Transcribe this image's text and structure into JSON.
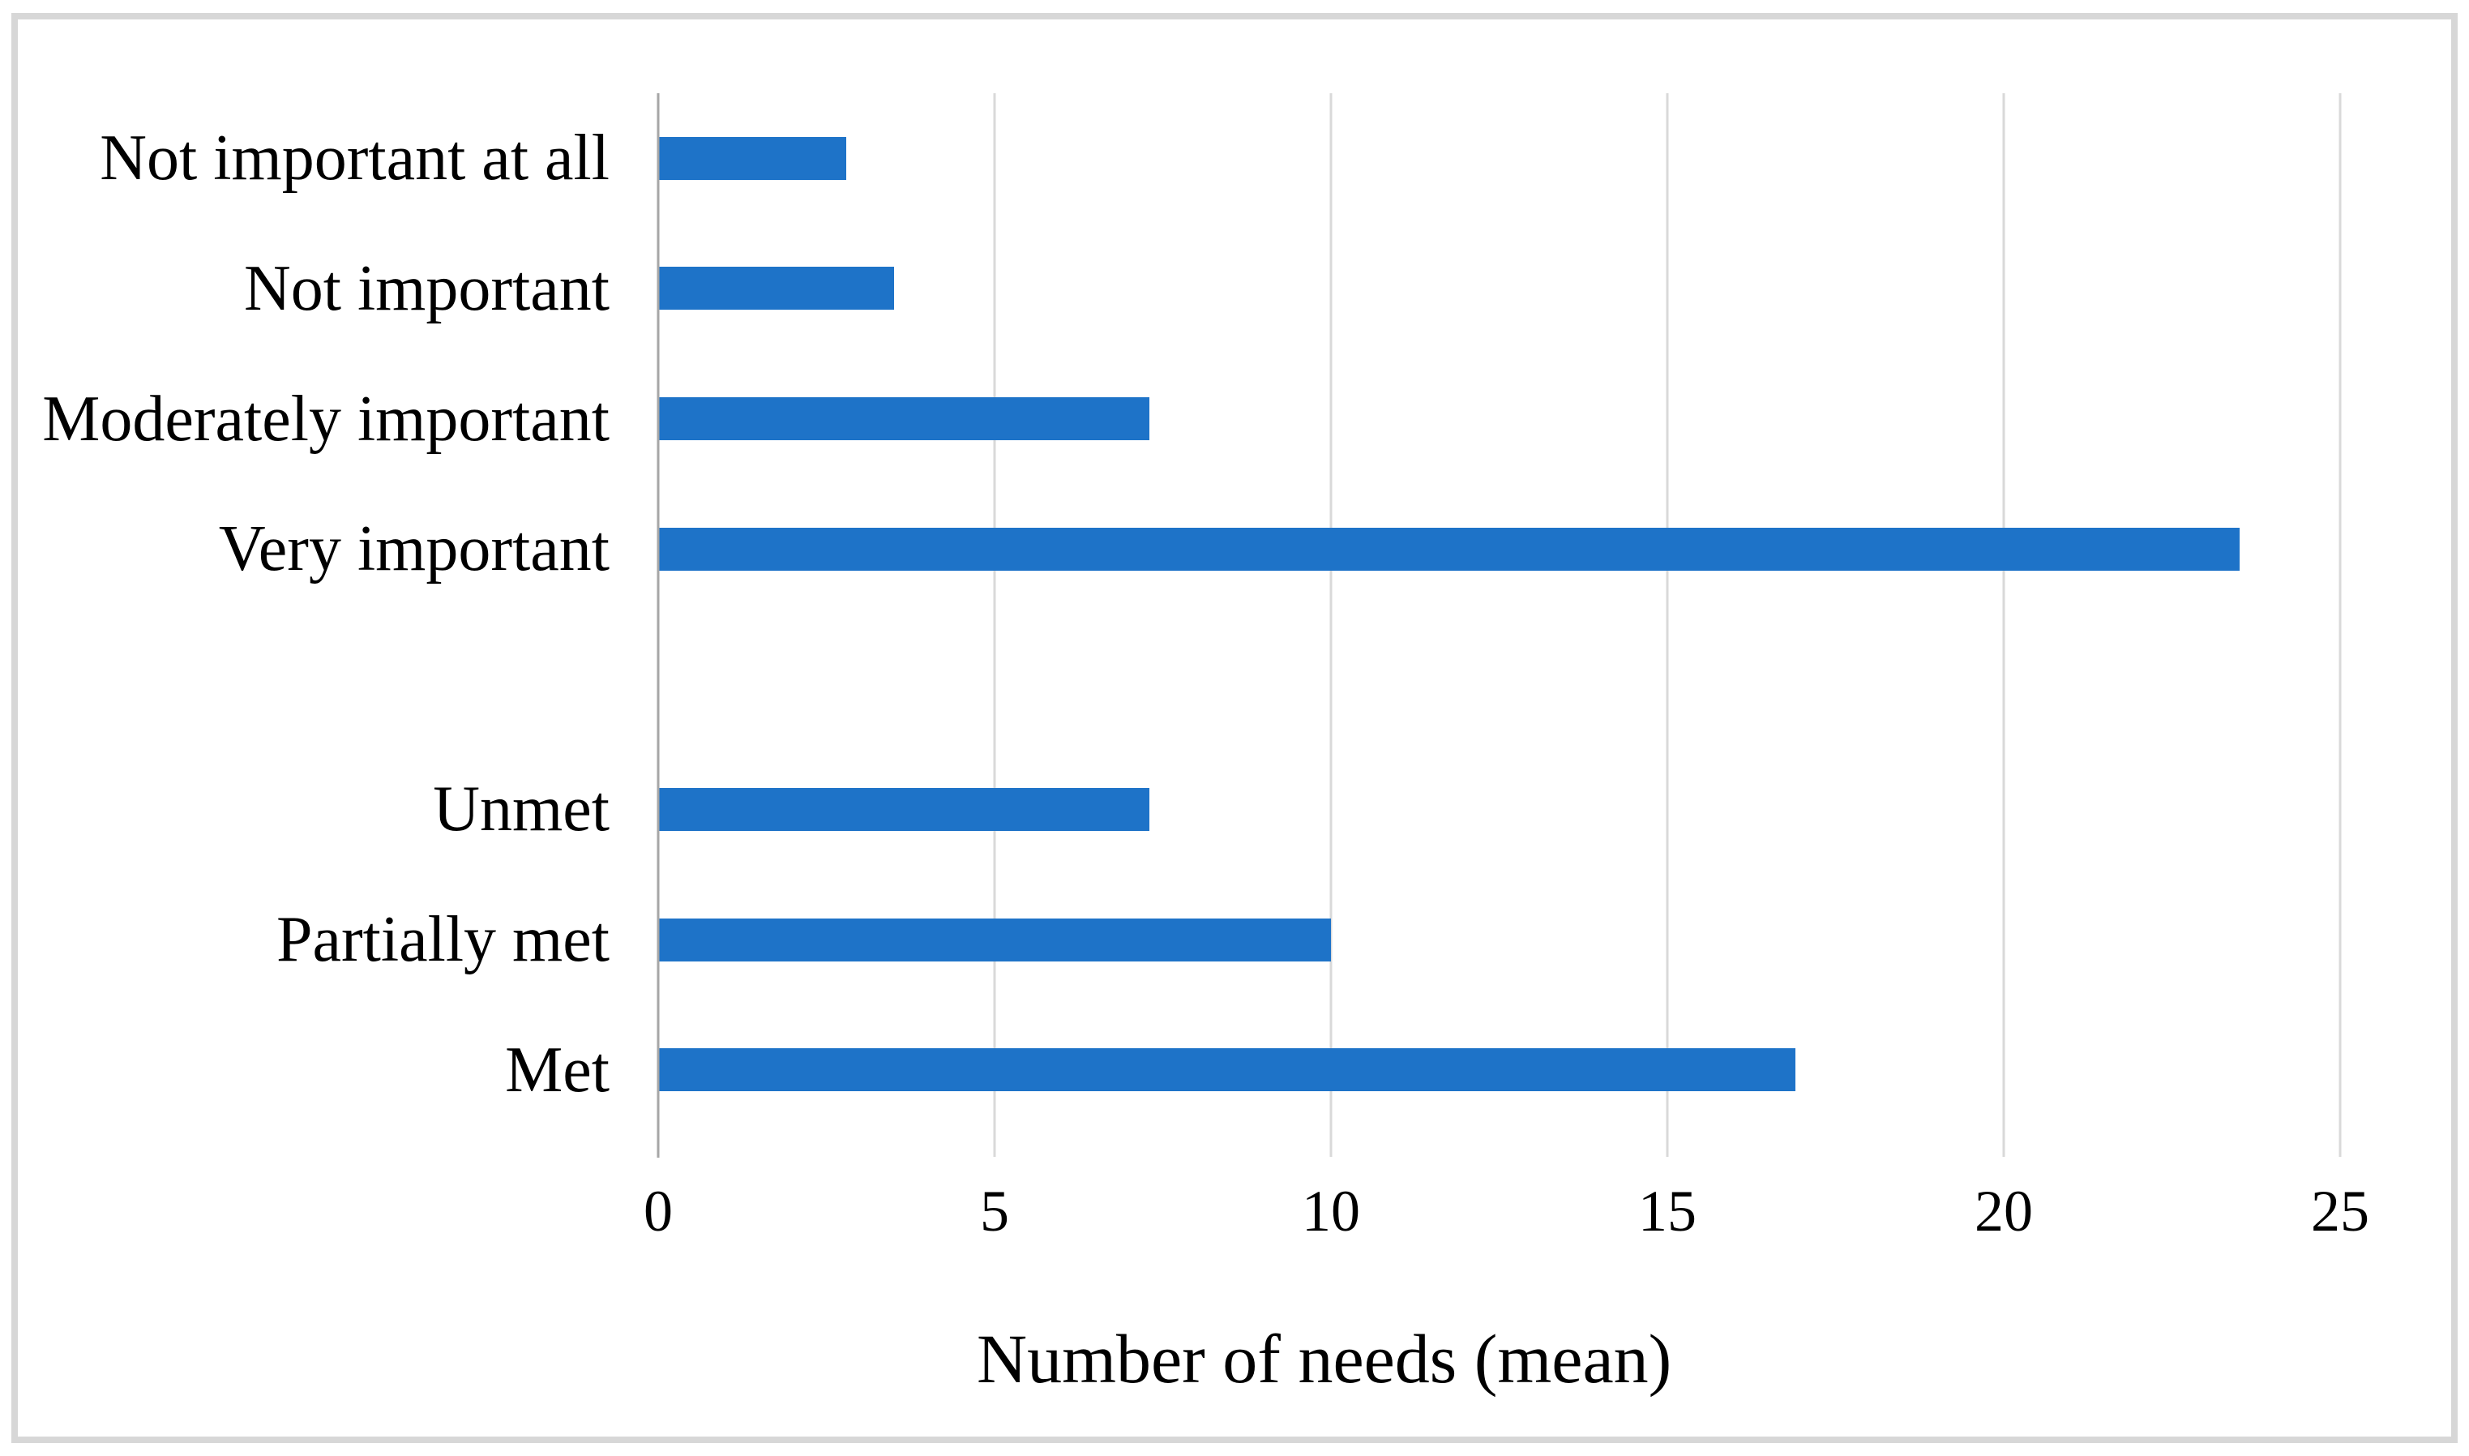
{
  "figure": {
    "background": "#ffffff",
    "frame_border_color": "#d7d7d7"
  },
  "chart_data": {
    "type": "bar",
    "orientation": "horizontal",
    "title": "",
    "xlabel": "Number of needs (mean)",
    "ylabel": "",
    "categories": [
      "Not important at all",
      "Not important",
      "Moderately important",
      "Very important",
      "",
      "Unmet",
      "Partially met",
      "Met"
    ],
    "values": [
      2.8,
      3.5,
      7.3,
      23.5,
      null,
      7.3,
      10.0,
      16.9
    ],
    "xlim": [
      0,
      25
    ],
    "x_ticks": [
      0,
      5,
      10,
      15,
      20,
      25
    ],
    "grid": true,
    "legend": "none",
    "bar_color": "#1e73c8",
    "gridline_color": "#d9d9d9",
    "axis_line_color": "#a6a6a6",
    "text_color": "#000000"
  }
}
